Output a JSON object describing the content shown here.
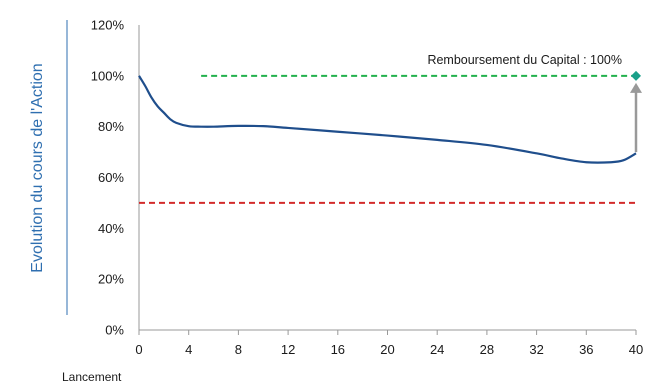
{
  "chart_data": {
    "type": "line",
    "title": "",
    "ylabel": "Evolution du cours de l'Action",
    "x_sublabel": "Lancement",
    "xlim": [
      0,
      40
    ],
    "ylim": [
      0,
      120
    ],
    "x_ticks": [
      "0",
      "4",
      "8",
      "12",
      "16",
      "20",
      "24",
      "28",
      "32",
      "36",
      "40"
    ],
    "y_ticks": [
      "0%",
      "20%",
      "40%",
      "60%",
      "80%",
      "100%",
      "120%"
    ],
    "grid": false,
    "series": [
      {
        "color": "#1f4e8c",
        "x": [
          0,
          0.5,
          1,
          1.5,
          2,
          2.5,
          3,
          4,
          5,
          6,
          8,
          10,
          12,
          16,
          20,
          24,
          28,
          32,
          34,
          36,
          38,
          39,
          40
        ],
        "y": [
          100,
          96,
          91.5,
          88,
          85.5,
          83,
          81.5,
          80.2,
          80,
          80,
          80.3,
          80.2,
          79.5,
          78,
          76.5,
          74.8,
          72.8,
          69.5,
          67.5,
          66,
          66,
          66.8,
          69.5
        ]
      }
    ],
    "reference_lines": [
      {
        "y": 100,
        "x_start": 5,
        "x_end": 40,
        "color": "#22b14c",
        "style": "dashed"
      },
      {
        "y": 50,
        "x_start": 0,
        "x_end": 40,
        "color": "#d22b2b",
        "style": "dashed"
      }
    ],
    "annotation": {
      "text": "Remboursement du Capital : 100%",
      "x": 40,
      "y_from": 70,
      "y_to": 100,
      "arrow_color": "#999999",
      "marker_color": "#1aa08a"
    }
  }
}
